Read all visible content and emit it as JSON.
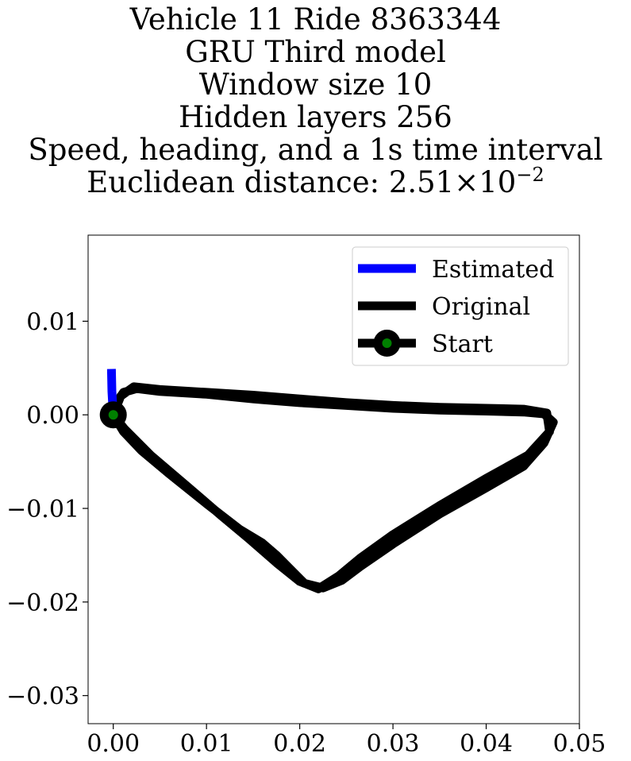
{
  "chart_data": {
    "type": "line",
    "title_lines": [
      "Vehicle 11 Ride 8363344",
      "GRU Third model",
      "Window size 10",
      "Hidden layers 256",
      "Speed, heading, and a 1s time interval"
    ],
    "distance_label": "Euclidean distance:",
    "distance_mantissa": "2.51",
    "distance_times": "×",
    "distance_base": "10",
    "distance_exponent": "−2",
    "xlabel": "",
    "ylabel": "",
    "xlim": [
      -0.0027,
      0.05
    ],
    "ylim": [
      -0.033,
      0.0192
    ],
    "xticks": [
      0.0,
      0.01,
      0.02,
      0.03,
      0.04,
      0.05
    ],
    "xtick_labels": [
      "0.00",
      "0.01",
      "0.02",
      "0.03",
      "0.04",
      "0.05"
    ],
    "yticks": [
      0.01,
      0.0,
      -0.01,
      -0.02,
      -0.03
    ],
    "ytick_labels": [
      "0.01",
      "0.00",
      "−0.01",
      "−0.02",
      "−0.03"
    ],
    "grid": false,
    "legend_position": "top-right",
    "series": [
      {
        "name": "Estimated",
        "color": "#0000ff",
        "points": [
          [
            -0.0002,
            0.0049
          ],
          [
            -0.00015,
            0.0025
          ],
          [
            0.0,
            0.0
          ]
        ]
      },
      {
        "name": "Original",
        "color": "#000000",
        "points": [
          [
            0.0,
            0.0
          ],
          [
            0.0003,
            0.0012
          ],
          [
            0.0011,
            0.0024
          ],
          [
            0.0025,
            0.0028
          ],
          [
            0.005,
            0.0025
          ],
          [
            0.01,
            0.0022
          ],
          [
            0.015,
            0.0017
          ],
          [
            0.02,
            0.0013
          ],
          [
            0.025,
            0.001
          ],
          [
            0.03,
            0.0007
          ],
          [
            0.035,
            0.0005
          ],
          [
            0.04,
            0.0004
          ],
          [
            0.044,
            0.0003
          ],
          [
            0.0462,
            0.0001
          ],
          [
            0.0472,
            -0.0008
          ],
          [
            0.0462,
            -0.003
          ],
          [
            0.044,
            -0.0055
          ],
          [
            0.04,
            -0.0078
          ],
          [
            0.035,
            -0.0106
          ],
          [
            0.03,
            -0.0138
          ],
          [
            0.0265,
            -0.0162
          ],
          [
            0.0245,
            -0.0177
          ],
          [
            0.0225,
            -0.0185
          ],
          [
            0.0205,
            -0.018
          ],
          [
            0.019,
            -0.0165
          ],
          [
            0.0175,
            -0.015
          ],
          [
            0.016,
            -0.0137
          ],
          [
            0.0135,
            -0.0122
          ],
          [
            0.01,
            -0.0095
          ],
          [
            0.006,
            -0.0063
          ],
          [
            0.003,
            -0.0038
          ],
          [
            0.0011,
            -0.0018
          ],
          [
            0.0,
            0.0
          ],
          [
            0.0012,
            -0.0015
          ],
          [
            0.004,
            -0.0043
          ],
          [
            0.008,
            -0.0077
          ],
          [
            0.0115,
            -0.0107
          ],
          [
            0.0145,
            -0.0132
          ],
          [
            0.0175,
            -0.0158
          ],
          [
            0.02,
            -0.0178
          ],
          [
            0.022,
            -0.0186
          ],
          [
            0.0242,
            -0.0172
          ],
          [
            0.0265,
            -0.0153
          ],
          [
            0.03,
            -0.0128
          ],
          [
            0.035,
            -0.0097
          ],
          [
            0.04,
            -0.0068
          ],
          [
            0.0445,
            -0.0043
          ],
          [
            0.0468,
            -0.0018
          ],
          [
            0.0465,
            0.0002
          ],
          [
            0.044,
            0.0006
          ],
          [
            0.04,
            0.0007
          ],
          [
            0.035,
            0.0008
          ],
          [
            0.03,
            0.001
          ],
          [
            0.025,
            0.0013
          ],
          [
            0.02,
            0.0017
          ],
          [
            0.015,
            0.0021
          ],
          [
            0.01,
            0.0024
          ],
          [
            0.005,
            0.0027
          ],
          [
            0.0022,
            0.003
          ],
          [
            0.0008,
            0.002
          ],
          [
            0.0,
            0.0
          ]
        ]
      },
      {
        "name": "Start",
        "color": "#008000",
        "edge_color": "#000000",
        "points": [
          [
            0.0,
            0.0
          ]
        ]
      }
    ]
  }
}
